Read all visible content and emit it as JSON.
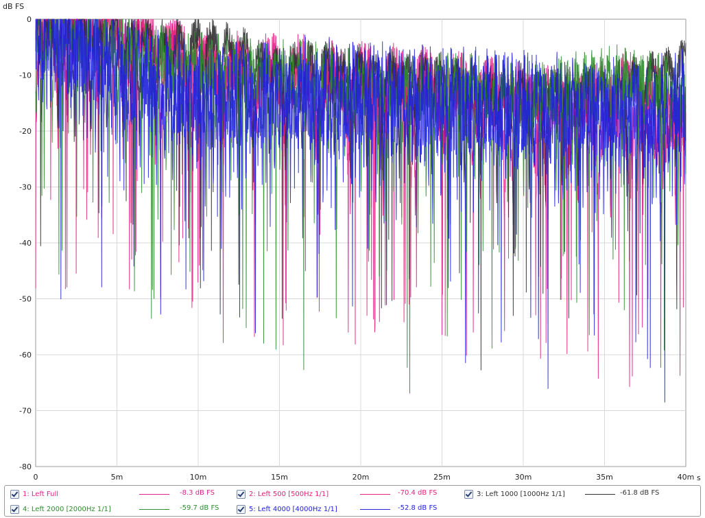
{
  "chart_data": {
    "type": "line",
    "ylabel": "dB FS",
    "xlabel": "s",
    "xlim": [
      0,
      0.04
    ],
    "ylim": [
      -80,
      0
    ],
    "x_ticks": [
      "0",
      "5m",
      "10m",
      "15m",
      "20m",
      "25m",
      "30m",
      "35m",
      "40m"
    ],
    "y_ticks": [
      "0",
      "-10",
      "-20",
      "-30",
      "-40",
      "-50",
      "-60",
      "-70",
      "-80"
    ],
    "grid": true,
    "series": [
      {
        "index": 1,
        "name": "1: Left Full",
        "value": "-8.3 dB FS",
        "color": "#e0208a",
        "visible": true,
        "envelope_peaks": [
          -1,
          -0.5,
          -3,
          -8,
          -8,
          -9,
          -10,
          -11,
          -13,
          -14,
          -16,
          -18
        ]
      },
      {
        "index": 2,
        "name": "2: Left 500 [500Hz 1/1]",
        "value": "-70.4 dB FS",
        "color": "#e0207a",
        "visible": true,
        "envelope_peaks": [
          -1,
          0,
          -3,
          -6,
          -9,
          -11,
          -11,
          -12,
          -13,
          -14,
          -9,
          -14
        ]
      },
      {
        "index": 3,
        "name": "3: Left 1000 [1000Hz 1/1]",
        "value": "-61.8 dB FS",
        "color": "#303030",
        "visible": true,
        "envelope_peaks": [
          0,
          -1,
          -3,
          -2,
          -7,
          -7,
          -8,
          -9,
          -12,
          -11,
          -10,
          -6
        ]
      },
      {
        "index": 4,
        "name": "4: Left 2000 [2000Hz 1/1]",
        "value": "-59.7 dB FS",
        "color": "#2e8b2e",
        "visible": true,
        "envelope_peaks": [
          -1,
          -3,
          -6,
          -8,
          -9,
          -10,
          -12,
          -11,
          -13,
          -12,
          -10,
          -13
        ]
      },
      {
        "index": 5,
        "name": "5: Left 4000 [4000Hz 1/1]",
        "value": "-52.8 dB FS",
        "color": "#2020dd",
        "visible": true,
        "envelope_peaks": [
          0,
          -5,
          -10,
          -13,
          -12,
          -12,
          -13,
          -14,
          -14,
          -15,
          -15,
          -14
        ]
      }
    ]
  }
}
